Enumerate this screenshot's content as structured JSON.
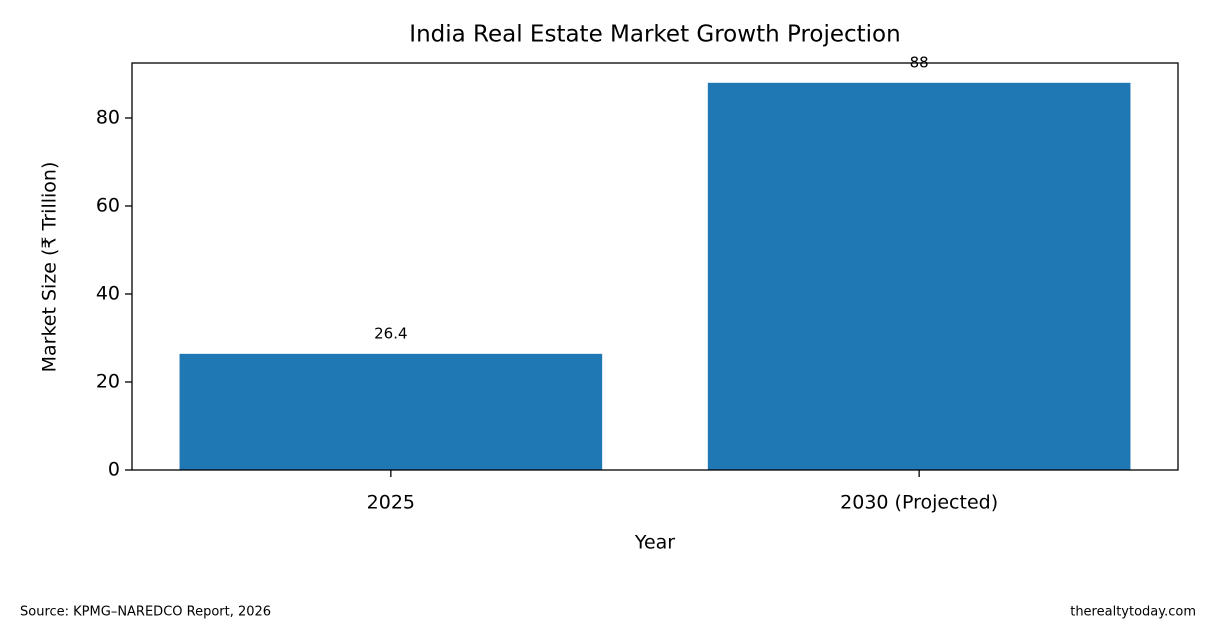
{
  "chart_data": {
    "type": "bar",
    "title": "India Real Estate Market Growth Projection",
    "x_label": "Year",
    "y_label": "Market Size (₹ Trillion)",
    "categories": [
      "2025",
      "2030 (Projected)"
    ],
    "values": [
      26.4,
      88
    ],
    "color": "#1f77b4",
    "ylim": [
      0,
      92.5
    ],
    "yticks": [
      0,
      20,
      40,
      60,
      80
    ],
    "grid": false,
    "source": "Source: KPMG–NAREDCO Report, 2026",
    "credit": "therealtytoday.com"
  }
}
